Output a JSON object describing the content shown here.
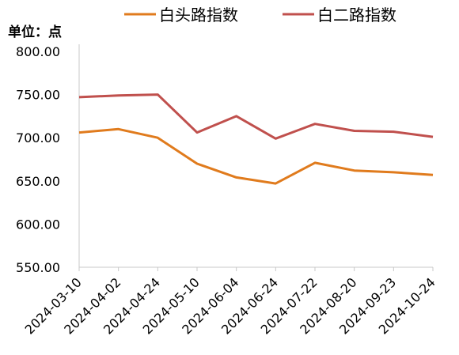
{
  "chart_data": {
    "type": "line",
    "unit_label": "单位：点",
    "x": [
      "2024-03-10",
      "2024-04-02",
      "2024-04-24",
      "2024-05-10",
      "2024-06-04",
      "2024-06-24",
      "2024-07-22",
      "2024-08-20",
      "2024-09-23",
      "2024-10-24"
    ],
    "series": [
      {
        "name": "白头路指数",
        "color": "#e07b1d",
        "values": [
          706,
          710,
          700,
          670,
          654,
          647,
          671,
          662,
          660,
          657
        ]
      },
      {
        "name": "白二路指数",
        "color": "#c0504d",
        "values": [
          747,
          749,
          750,
          706,
          725,
          699,
          716,
          708,
          707,
          701
        ]
      }
    ],
    "yticks": [
      "550.00",
      "600.00",
      "650.00",
      "700.00",
      "750.00",
      "800.00"
    ],
    "ylim": [
      550,
      800
    ],
    "grid": false,
    "legend_position": "top"
  }
}
